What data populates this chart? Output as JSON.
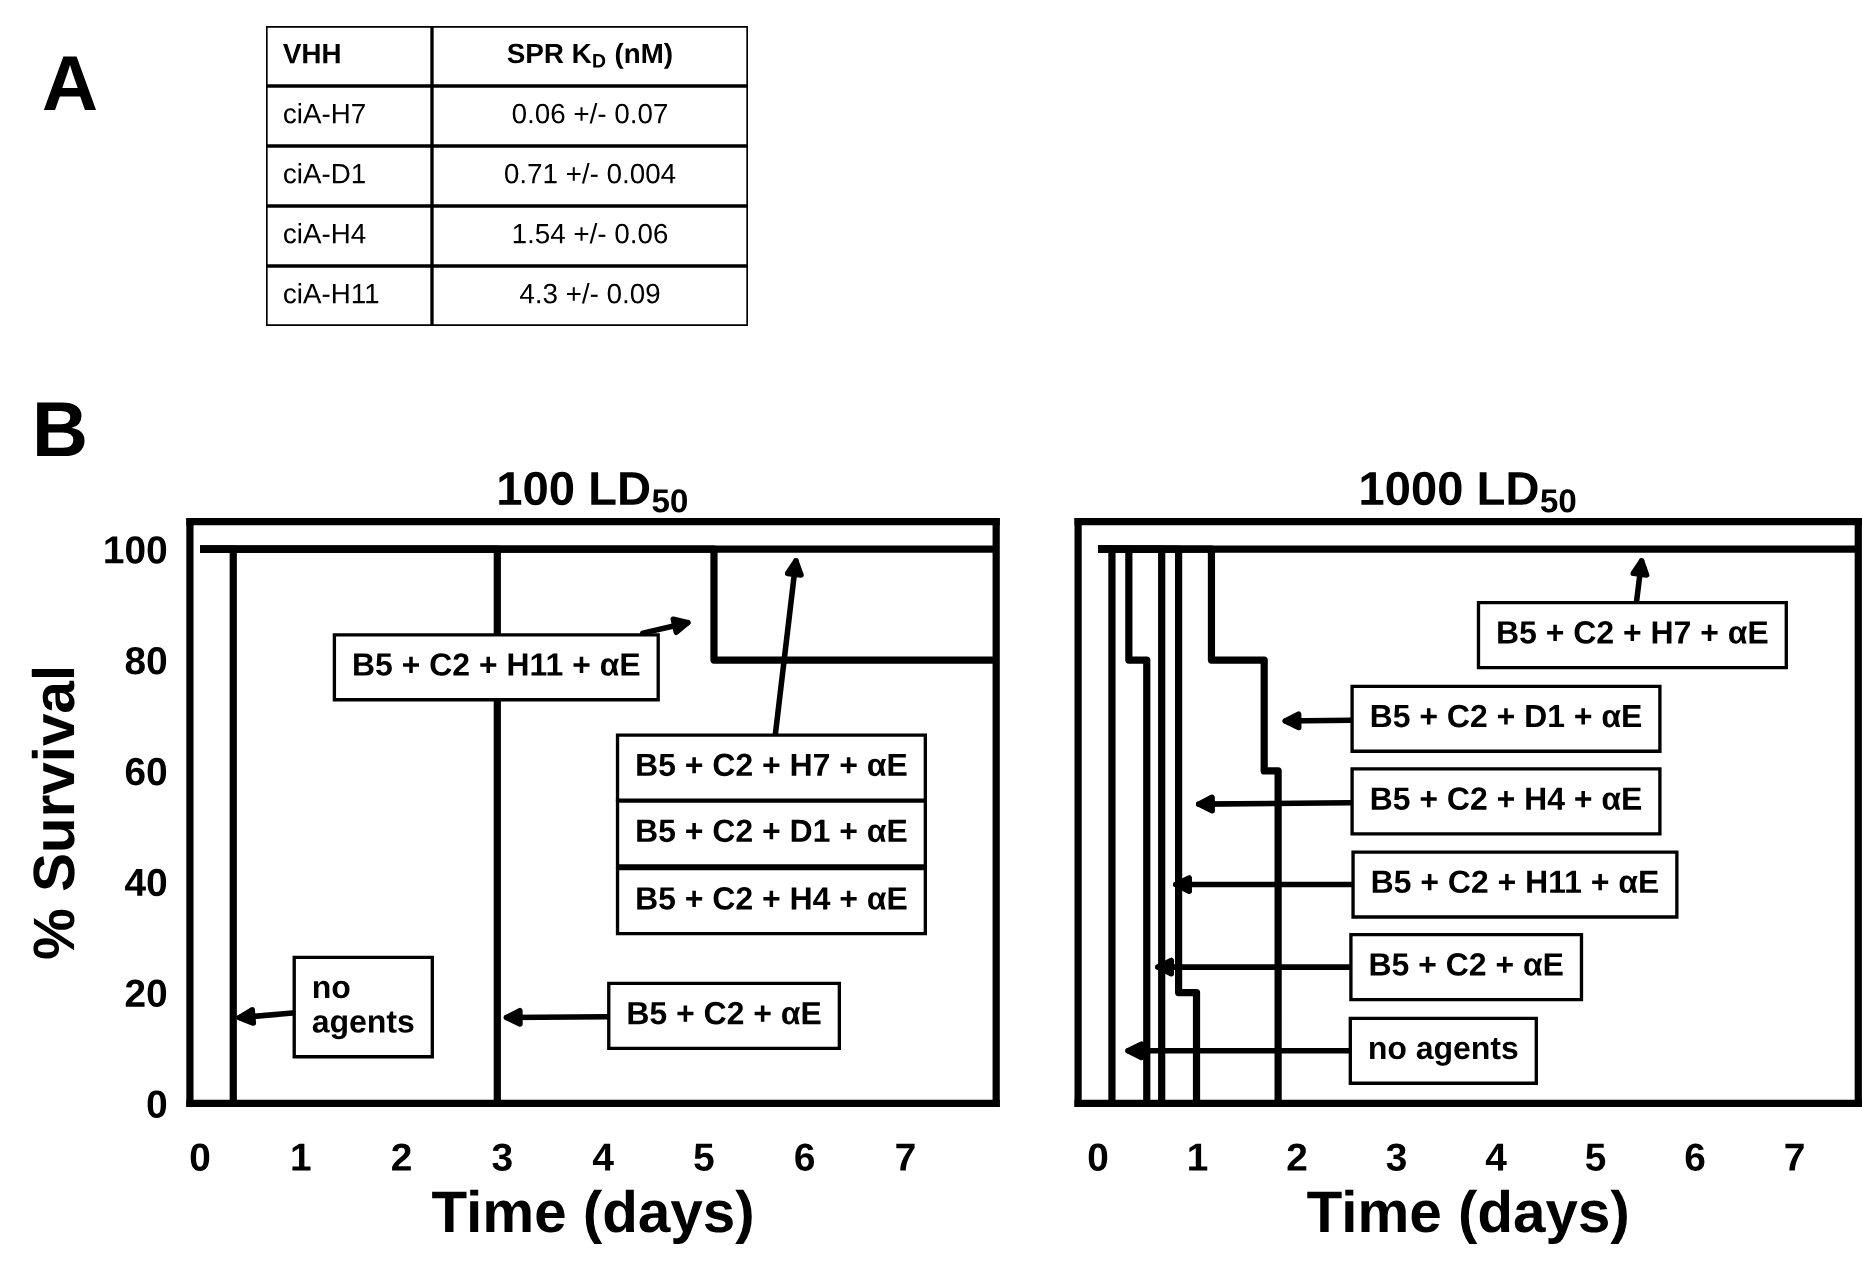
{
  "chart_data": [
    {
      "type": "other",
      "categories": [
        "VHH",
        "SPR K$_{D}$ (nM)"
      ],
      "cell_labels": [
        [
          "ciA-H7",
          "0.06 +/- 0.07"
        ],
        [
          "ciA-D1",
          "0.71 +/- 0.004"
        ],
        [
          "ciA-H4",
          "1.54 +/- 0.06"
        ],
        [
          "ciA-H11",
          "4.3 +/- 0.09"
        ]
      ],
      "annotations": [
        "A"
      ]
    },
    {
      "type": "line",
      "title": "100 LD$_{50}$",
      "xlabel": "Time (days)",
      "ylabel": "% Survival",
      "xlim": [
        -0.1,
        7.9
      ],
      "ylim": [
        0,
        105
      ],
      "xticks": [
        0,
        1,
        2,
        3,
        4,
        5,
        6,
        7
      ],
      "yticks": [
        0,
        20,
        40,
        60,
        80,
        100
      ],
      "series": [
        {
          "color": "#000000",
          "x": [
            0,
            0.33,
            0.33
          ],
          "values": [
            100,
            100,
            0
          ]
        },
        {
          "color": "#000000",
          "x": [
            0,
            2.95,
            2.95
          ],
          "values": [
            100,
            100,
            0
          ]
        },
        {
          "color": "#000000",
          "x": [
            0,
            5.1,
            5.1,
            7.9
          ],
          "values": [
            100,
            100,
            80,
            80
          ]
        },
        {
          "color": "#000000",
          "x": [
            0,
            7.9
          ],
          "values": [
            100,
            100
          ]
        }
      ],
      "annotations": [
        "B",
        {
          "text": "no\nagents",
          "x": 0.33,
          "y": 15.4
        },
        "B5 + C2 + αE",
        "B5 + C2 + H11 + αE",
        {
          "text": "B5 + C2 + H7 + αE",
          "x": 5.92,
          "y": 99
        },
        "B5 + C2 + D1 + αE",
        "B5 + C2 + H4 + αE"
      ]
    },
    {
      "type": "line",
      "title": "1000 LD$_{50}$",
      "xlabel": "Time (days)",
      "tick_labels": "x",
      "xlim": [
        -0.2,
        7.64
      ],
      "ylim": [
        0,
        105
      ],
      "xticks": [
        0,
        1,
        2,
        3,
        4,
        5,
        6,
        7
      ],
      "yticks": [
        0,
        20,
        40,
        60,
        80,
        100
      ],
      "series": [
        {
          "color": "#000000",
          "x": [
            0,
            0.14,
            0.14
          ],
          "values": [
            100,
            100,
            0
          ]
        },
        {
          "color": "#000000",
          "x": [
            0,
            0.31,
            0.31,
            0.49,
            0.49
          ],
          "values": [
            100,
            100,
            80,
            80,
            0
          ]
        },
        {
          "color": "#000000",
          "x": [
            0,
            0.64,
            0.64
          ],
          "values": [
            100,
            100,
            0
          ]
        },
        {
          "color": "#000000",
          "x": [
            0,
            0.81,
            0.81,
            0.99,
            0.99
          ],
          "values": [
            100,
            100,
            20,
            20,
            0
          ]
        },
        {
          "color": "#000000",
          "x": [
            0,
            1.14,
            1.14,
            1.67,
            1.67,
            1.81,
            1.81
          ],
          "values": [
            100,
            100,
            80,
            80,
            60,
            60,
            0
          ]
        },
        {
          "color": "#000000",
          "x": [
            0,
            7.64
          ],
          "values": [
            100,
            100
          ]
        }
      ],
      "annotations": [
        {
          "text": "B5 + C2 + H7 + αE",
          "x": 5.47,
          "y": 99
        },
        "B5 + C2 + D1 + αE",
        "B5 + C2 + H4 + αE",
        {
          "text": "B5 + C2 + H11 + αE",
          "x": 0.72,
          "y": 39.5
        },
        {
          "text": "B5 + C2 + αE",
          "x": 0.54,
          "y": 24.6
        },
        {
          "text": "no agents",
          "x": 0.24,
          "y": 9.5
        }
      ]
    }
  ]
}
